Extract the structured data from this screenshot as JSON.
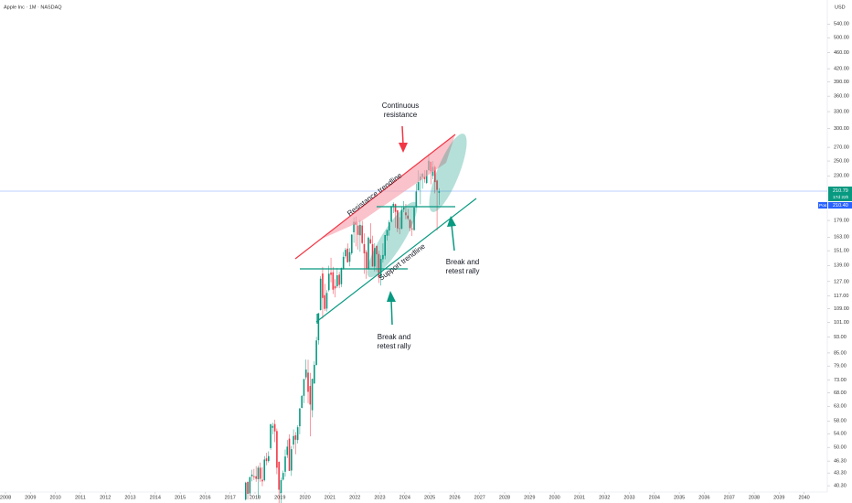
{
  "chart_data": {
    "type": "candlestick",
    "title": "Apple Inc · 1M · NASDAQ",
    "currency": "USD",
    "log_scale": true,
    "up_color": "#089981",
    "down_color": "#f23645",
    "x": [
      "2017-08",
      "2017-09",
      "2017-10",
      "2017-11",
      "2017-12",
      "2018-01",
      "2018-02",
      "2018-03",
      "2018-04",
      "2018-05",
      "2018-06",
      "2018-07",
      "2018-08",
      "2018-09",
      "2018-10",
      "2018-11",
      "2018-12",
      "2019-01",
      "2019-02",
      "2019-03",
      "2019-04",
      "2019-05",
      "2019-06",
      "2019-07",
      "2019-08",
      "2019-09",
      "2019-10",
      "2019-11",
      "2019-12",
      "2020-01",
      "2020-02",
      "2020-03",
      "2020-04",
      "2020-05",
      "2020-06",
      "2020-07",
      "2020-08",
      "2020-09",
      "2020-10",
      "2020-11",
      "2020-12",
      "2021-01",
      "2021-02",
      "2021-03",
      "2021-04",
      "2021-05",
      "2021-06",
      "2021-07",
      "2021-08",
      "2021-09",
      "2021-10",
      "2021-11",
      "2021-12",
      "2022-01",
      "2022-02",
      "2022-03",
      "2022-04",
      "2022-05",
      "2022-06",
      "2022-07",
      "2022-08",
      "2022-09",
      "2022-10",
      "2022-11",
      "2022-12",
      "2023-01",
      "2023-02",
      "2023-03",
      "2023-04",
      "2023-05",
      "2023-06",
      "2023-07",
      "2023-08",
      "2023-09",
      "2023-10",
      "2023-11",
      "2023-12",
      "2024-01",
      "2024-02",
      "2024-03",
      "2024-04",
      "2024-05",
      "2024-06",
      "2024-07",
      "2024-08",
      "2024-09",
      "2024-10",
      "2024-11",
      "2024-12",
      "2025-01",
      "2025-02",
      "2025-03",
      "2025-04",
      "2025-05"
    ],
    "open": [
      37.3,
      41.2,
      38.6,
      42.5,
      42.5,
      42.5,
      41.8,
      44.6,
      41.7,
      41.6,
      47.0,
      46.3,
      49.8,
      55.8,
      57.0,
      54.8,
      46.1,
      38.7,
      41.7,
      43.6,
      47.9,
      52.5,
      43.9,
      50.8,
      53.5,
      52.1,
      56.3,
      62.4,
      66.8,
      74.1,
      76.1,
      70.6,
      61.6,
      71.6,
      79.4,
      91.3,
      108.2,
      132.8,
      117.6,
      109.1,
      121.0,
      133.5,
      133.8,
      123.8,
      123.7,
      132.0,
      125.1,
      136.6,
      146.4,
      152.8,
      141.9,
      148.9,
      167.5,
      177.8,
      174.0,
      164.7,
      174.0,
      156.7,
      149.9,
      136.0,
      161.0,
      156.6,
      138.2,
      155.1,
      148.2,
      130.3,
      144.0,
      146.8,
      164.3,
      169.3,
      177.7,
      193.8,
      196.2,
      189.5,
      171.2,
      171.0,
      190.3,
      187.2,
      184.0,
      179.6,
      171.2,
      169.6,
      192.9,
      212.1,
      224.4,
      228.6,
      229.5,
      221.0,
      237.3,
      248.9,
      230.0,
      241.8,
      223.9,
      209.1
    ],
    "high": [
      41.2,
      41.2,
      42.4,
      44.1,
      44.3,
      45.0,
      45.1,
      45.9,
      44.7,
      47.6,
      48.5,
      48.9,
      57.2,
      57.4,
      58.4,
      55.6,
      46.2,
      42.2,
      43.9,
      49.4,
      52.1,
      53.8,
      50.4,
      55.3,
      54.5,
      56.6,
      62.4,
      67.0,
      73.5,
      81.9,
      81.8,
      76.0,
      73.6,
      81.1,
      93.1,
      106.4,
      131.0,
      137.9,
      125.4,
      121.0,
      138.8,
      145.1,
      137.9,
      128.7,
      137.1,
      134.1,
      137.4,
      150.0,
      153.5,
      157.3,
      153.2,
      165.7,
      182.1,
      182.9,
      176.7,
      179.6,
      178.5,
      166.5,
      151.7,
      163.6,
      176.2,
      164.3,
      157.5,
      155.5,
      150.9,
      147.2,
      157.4,
      165.0,
      169.9,
      179.4,
      194.5,
      198.2,
      196.7,
      189.9,
      182.3,
      192.9,
      199.6,
      196.4,
      191.1,
      180.5,
      178.4,
      193.0,
      220.2,
      237.2,
      232.9,
      233.1,
      237.5,
      237.8,
      260.1,
      249.1,
      250.0,
      244.0,
      225.2,
      214.6
    ],
    "low": [
      37.1,
      37.3,
      38.1,
      41.3,
      41.6,
      41.2,
      37.6,
      41.2,
      40.2,
      41.3,
      45.2,
      45.9,
      49.3,
      53.8,
      51.5,
      43.0,
      35.5,
      35.5,
      41.5,
      42.4,
      47.1,
      43.8,
      42.6,
      49.6,
      48.1,
      51.1,
      53.8,
      62.3,
      64.1,
      73.2,
      64.1,
      53.2,
      59.2,
      71.5,
      79.3,
      89.1,
      107.9,
      103.1,
      107.7,
      107.3,
      120.0,
      126.4,
      118.4,
      116.2,
      122.5,
      122.3,
      123.1,
      135.8,
      144.5,
      141.3,
      138.3,
      147.5,
      157.8,
      154.7,
      152.0,
      150.1,
      156.7,
      132.6,
      129.0,
      135.7,
      157.1,
      138.0,
      134.4,
      134.4,
      125.9,
      124.2,
      141.3,
      143.9,
      159.8,
      164.3,
      176.9,
      186.6,
      171.9,
      167.6,
      165.7,
      170.1,
      187.5,
      180.2,
      179.3,
      168.5,
      164.1,
      169.1,
      192.2,
      211.9,
      196.0,
      213.9,
      221.3,
      219.7,
      237.2,
      219.4,
      225.7,
      208.4,
      169.2,
      195.1
    ],
    "close": [
      41.0,
      38.5,
      42.3,
      42.9,
      42.3,
      41.9,
      44.6,
      41.9,
      41.3,
      46.7,
      46.3,
      47.6,
      56.9,
      56.4,
      54.7,
      44.6,
      39.4,
      41.6,
      43.3,
      47.5,
      50.2,
      43.8,
      49.5,
      53.3,
      52.2,
      56.0,
      62.2,
      66.8,
      73.4,
      77.4,
      68.3,
      63.6,
      73.5,
      79.5,
      91.2,
      106.3,
      129.0,
      115.8,
      108.9,
      119.1,
      132.7,
      131.9,
      121.3,
      122.2,
      131.5,
      124.6,
      137.0,
      145.9,
      151.8,
      141.5,
      149.8,
      165.3,
      177.6,
      174.8,
      165.1,
      174.6,
      157.7,
      148.8,
      136.7,
      162.5,
      157.2,
      138.2,
      153.3,
      148.0,
      129.9,
      144.3,
      147.4,
      164.9,
      169.7,
      177.3,
      194.0,
      196.4,
      187.9,
      171.2,
      170.8,
      189.9,
      192.5,
      184.4,
      180.8,
      171.5,
      170.3,
      192.3,
      210.6,
      222.1,
      229.0,
      233.0,
      225.9,
      237.3,
      250.4,
      236.0,
      241.8,
      222.1,
      212.5,
      210.8
    ],
    "xlim": [
      2007.78,
      2040.93
    ],
    "xticks": [
      2008,
      2009,
      2010,
      2011,
      2012,
      2013,
      2014,
      2015,
      2016,
      2017,
      2018,
      2019,
      2020,
      2021,
      2022,
      2023,
      2024,
      2025,
      2026,
      2027,
      2028,
      2029,
      2030,
      2031,
      2032,
      2033,
      2034,
      2035,
      2036,
      2037,
      2038,
      2039,
      2040
    ],
    "ylim": [
      38.9,
      618
    ],
    "yticks": [
      {
        "value": 540,
        "label": "540.00"
      },
      {
        "value": 500,
        "label": "500.00"
      },
      {
        "value": 460,
        "label": "460.00"
      },
      {
        "value": 420,
        "label": "420.00"
      },
      {
        "value": 390,
        "label": "390.00"
      },
      {
        "value": 360,
        "label": "360.00"
      },
      {
        "value": 330,
        "label": "330.00"
      },
      {
        "value": 300,
        "label": "300.00"
      },
      {
        "value": 270,
        "label": "270.00"
      },
      {
        "value": 250,
        "label": "250.00"
      },
      {
        "value": 230,
        "label": "230.00"
      },
      {
        "value": 179,
        "label": "179.00"
      },
      {
        "value": 163,
        "label": "163.00"
      },
      {
        "value": 151,
        "label": "151.00"
      },
      {
        "value": 139,
        "label": "139.00"
      },
      {
        "value": 127,
        "label": "127.00"
      },
      {
        "value": 117,
        "label": "117.00"
      },
      {
        "value": 109,
        "label": "109.00"
      },
      {
        "value": 101,
        "label": "101.00"
      },
      {
        "value": 93,
        "label": "93.00"
      },
      {
        "value": 85,
        "label": "85.00"
      },
      {
        "value": 79,
        "label": "79.00"
      },
      {
        "value": 73,
        "label": "73.00"
      },
      {
        "value": 68,
        "label": "68.00"
      },
      {
        "value": 63,
        "label": "63.00"
      },
      {
        "value": 58,
        "label": "58.00"
      },
      {
        "value": 54,
        "label": "54.00"
      },
      {
        "value": 50,
        "label": "50.00"
      },
      {
        "value": 46.3,
        "label": "46.30"
      },
      {
        "value": 43.3,
        "label": "43.30"
      },
      {
        "value": 40.3,
        "label": "40.30"
      }
    ],
    "last_price_label": "210.79",
    "countdown": "17d 22h",
    "position_tag": "Pos",
    "position_price": "210.40",
    "annotations": {
      "continuous_resistance": [
        "Continuous",
        "resistance"
      ],
      "resistance_trendline": "Resistance trendline",
      "support_trendline": "Support trendline",
      "break_retest_1": [
        "Break and",
        "retest rally"
      ],
      "break_retest_2": [
        "Break and",
        "retest rally"
      ]
    }
  }
}
